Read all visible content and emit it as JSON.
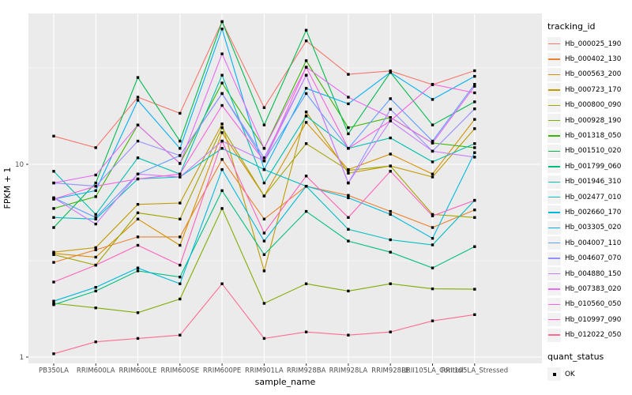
{
  "chart_data": {
    "type": "line",
    "title": "",
    "xlabel": "sample_name",
    "ylabel": "FPKM + 1",
    "y_scale": "log10",
    "ylim": [
      0.93,
      61
    ],
    "grid": true,
    "panel_bg": "#EBEBEB",
    "gridline_color": "#FFFFFF",
    "point_color": "#000000",
    "tick_label_color": "#4D4D4D",
    "axis_title_color": "#000000",
    "y_ticks": [
      {
        "label": "10",
        "value": 10
      },
      {
        "label": "1",
        "value": 1
      }
    ],
    "y_minor_gridlines": [
      31.62,
      3.162
    ],
    "x_categories": [
      "PB350LA",
      "RRIM600LA",
      "RRIM600LE",
      "RRIM600SE",
      "RRIM600PE",
      "RRIM901LA",
      "RRIM928BA",
      "RRIM928LA",
      "RRIM928LE",
      "RRII105LA_Control",
      "RRII105LA_Stressed"
    ],
    "legend_position": "right",
    "legend": {
      "title": "tracking_id"
    },
    "legend2": {
      "title": "quant_status",
      "items": [
        {
          "label": "OK",
          "marker": "black-square"
        }
      ]
    },
    "series": [
      {
        "name": "Hb_000025_190",
        "color": "#F8766D",
        "values": [
          14.0,
          12.2,
          22.3,
          18.4,
          55.0,
          19.7,
          43.7,
          29.3,
          30.5,
          25.9,
          30.6
        ]
      },
      {
        "name": "Hb_000402_130",
        "color": "#EA8331",
        "values": [
          3.1,
          3.6,
          4.2,
          4.2,
          10.6,
          5.2,
          7.7,
          6.9,
          5.7,
          4.7,
          5.8
        ]
      },
      {
        "name": "Hb_000563_200",
        "color": "#D89000",
        "values": [
          3.45,
          3.3,
          5.2,
          3.8,
          14.6,
          6.85,
          16.5,
          9.4,
          11.3,
          8.9,
          17.1
        ]
      },
      {
        "name": "Hb_000723_170",
        "color": "#C09B00",
        "values": [
          3.5,
          3.7,
          6.2,
          6.3,
          16.2,
          2.8,
          18.7,
          9.0,
          9.8,
          8.6,
          15.3
        ]
      },
      {
        "name": "Hb_000800_090",
        "color": "#A3A500",
        "values": [
          3.4,
          3.0,
          5.6,
          5.2,
          15.5,
          6.85,
          12.8,
          9.3,
          9.8,
          5.5,
          5.3
        ]
      },
      {
        "name": "Hb_000928_190",
        "color": "#7CAE00",
        "values": [
          1.9,
          1.8,
          1.7,
          2.0,
          5.9,
          1.9,
          2.4,
          2.2,
          2.4,
          2.26,
          2.25
        ]
      },
      {
        "name": "Hb_001318_050",
        "color": "#39B600",
        "values": [
          5.9,
          6.8,
          16.0,
          10.1,
          26.4,
          12.1,
          34.5,
          15.5,
          17.5,
          12.9,
          12.2
        ]
      },
      {
        "name": "Hb_001510_020",
        "color": "#00BB4E",
        "values": [
          4.7,
          8.0,
          28.2,
          13.2,
          55.0,
          16.0,
          49.6,
          14.4,
          30.0,
          16.0,
          21.1
        ]
      },
      {
        "name": "Hb_001799_060",
        "color": "#00BF7D",
        "values": [
          1.87,
          2.2,
          2.8,
          2.6,
          7.3,
          3.4,
          5.7,
          4.0,
          3.5,
          2.9,
          3.74
        ]
      },
      {
        "name": "Hb_001946_310",
        "color": "#00C0AF",
        "values": [
          9.2,
          5.5,
          10.8,
          8.9,
          29.0,
          8.0,
          17.8,
          12.1,
          13.7,
          10.3,
          12.8
        ]
      },
      {
        "name": "Hb_002477_010",
        "color": "#00BFC4",
        "values": [
          5.3,
          5.2,
          8.4,
          8.6,
          12.1,
          9.4,
          7.7,
          4.6,
          4.06,
          3.82,
          6.5
        ]
      },
      {
        "name": "Hb_002660_170",
        "color": "#00BADE",
        "values": [
          1.95,
          2.3,
          2.9,
          2.4,
          9.4,
          4.0,
          7.7,
          6.7,
          5.5,
          4.13,
          11.5
        ]
      },
      {
        "name": "Hb_003305_020",
        "color": "#00B0F6",
        "values": [
          6.6,
          7.3,
          21.5,
          12.1,
          50.4,
          9.4,
          24.8,
          20.6,
          30.0,
          21.7,
          28.6
        ]
      },
      {
        "name": "Hb_004007_110",
        "color": "#619CFF",
        "values": [
          6.7,
          5.3,
          8.9,
          11.1,
          23.3,
          10.4,
          23.3,
          12.1,
          21.9,
          13.2,
          26.0
        ]
      },
      {
        "name": "Hb_004607_070",
        "color": "#9590FF",
        "values": [
          8.0,
          7.7,
          13.2,
          11.1,
          23.3,
          10.8,
          29.0,
          8.0,
          19.3,
          11.7,
          19.4
        ]
      },
      {
        "name": "Hb_004880_150",
        "color": "#C77CFF",
        "values": [
          6.7,
          4.9,
          8.9,
          8.6,
          13.2,
          10.4,
          29.0,
          8.0,
          16.8,
          11.7,
          10.9
        ]
      },
      {
        "name": "Hb_007383_020",
        "color": "#E76BF3",
        "values": [
          8.0,
          8.8,
          16.0,
          10.1,
          37.4,
          12.1,
          31.9,
          22.3,
          17.5,
          12.9,
          25.4
        ]
      },
      {
        "name": "Hb_010560_050",
        "color": "#F862DE",
        "values": [
          6.6,
          7.7,
          8.4,
          8.9,
          20.2,
          10.4,
          31.9,
          12.1,
          16.8,
          26.0,
          23.5
        ]
      },
      {
        "name": "Hb_010997_090",
        "color": "#FF62BC",
        "values": [
          2.45,
          3.0,
          3.8,
          3.0,
          13.2,
          4.4,
          8.7,
          5.3,
          9.2,
          5.4,
          6.5
        ]
      },
      {
        "name": "Hb_012022_050",
        "color": "#FF6C91",
        "values": [
          1.04,
          1.2,
          1.25,
          1.3,
          2.4,
          1.25,
          1.35,
          1.3,
          1.35,
          1.54,
          1.66
        ]
      }
    ]
  }
}
